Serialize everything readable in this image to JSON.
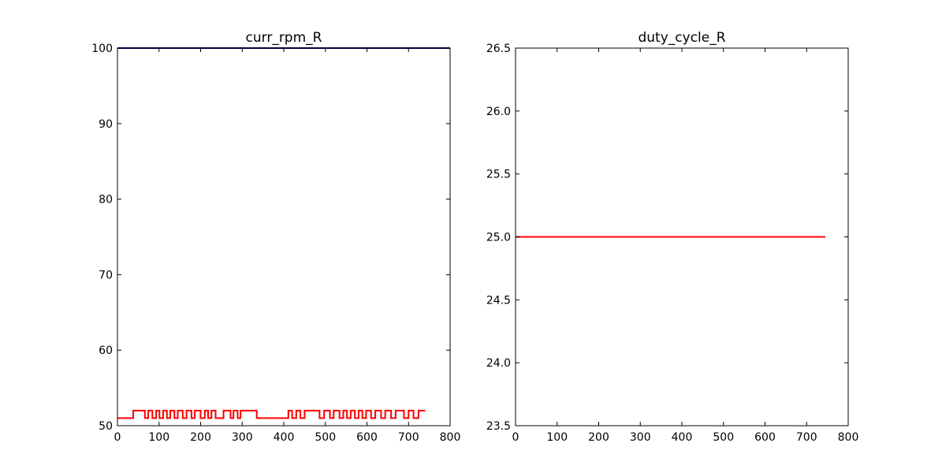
{
  "chart_data": [
    {
      "type": "line",
      "title": "curr_rpm_R",
      "xlabel": "",
      "ylabel": "",
      "xlim": [
        0,
        800
      ],
      "ylim": [
        50,
        100
      ],
      "xticks": [
        0,
        100,
        200,
        300,
        400,
        500,
        600,
        700,
        800
      ],
      "xtick_labels": [
        "0",
        "100",
        "200",
        "300",
        "400",
        "500",
        "600",
        "700",
        "800"
      ],
      "yticks": [
        50,
        60,
        70,
        80,
        90,
        100
      ],
      "ytick_labels": [
        "50",
        "60",
        "70",
        "80",
        "90",
        "100"
      ],
      "grid": false,
      "series": [
        {
          "color": "#ff0000",
          "step": true,
          "x": [
            0,
            38,
            66,
            74,
            84,
            93,
            101,
            110,
            119,
            127,
            137,
            145,
            157,
            166,
            178,
            186,
            200,
            210,
            218,
            226,
            236,
            255,
            272,
            279,
            289,
            296,
            335,
            411,
            420,
            430,
            440,
            450,
            486,
            497,
            511,
            520,
            534,
            543,
            552,
            561,
            571,
            580,
            589,
            598,
            610,
            620,
            634,
            644,
            658,
            669,
            689,
            700,
            712,
            724,
            740
          ],
          "y": [
            51,
            52,
            51,
            52,
            51,
            52,
            51,
            52,
            51,
            52,
            51,
            52,
            51,
            52,
            51,
            52,
            51,
            52,
            51,
            52,
            51,
            52,
            51,
            52,
            51,
            52,
            51,
            52,
            51,
            52,
            51,
            52,
            51,
            52,
            51,
            52,
            51,
            52,
            51,
            52,
            51,
            52,
            51,
            52,
            51,
            52,
            51,
            52,
            51,
            52,
            51,
            52,
            51,
            52,
            52
          ]
        },
        {
          "color": "#000080",
          "step": false,
          "x": [
            0,
            800
          ],
          "y": [
            100,
            100
          ]
        }
      ]
    },
    {
      "type": "line",
      "title": "duty_cycle_R",
      "xlabel": "",
      "ylabel": "",
      "xlim": [
        0,
        800
      ],
      "ylim": [
        23.5,
        26.5
      ],
      "xticks": [
        0,
        100,
        200,
        300,
        400,
        500,
        600,
        700,
        800
      ],
      "xtick_labels": [
        "0",
        "100",
        "200",
        "300",
        "400",
        "500",
        "600",
        "700",
        "800"
      ],
      "yticks": [
        23.5,
        24.0,
        24.5,
        25.0,
        25.5,
        26.0,
        26.5
      ],
      "ytick_labels": [
        "23.5",
        "24.0",
        "24.5",
        "25.0",
        "25.5",
        "26.0",
        "26.5"
      ],
      "grid": false,
      "series": [
        {
          "color": "#ff0000",
          "step": false,
          "x": [
            0,
            745
          ],
          "y": [
            25.0,
            25.0
          ]
        }
      ]
    }
  ]
}
